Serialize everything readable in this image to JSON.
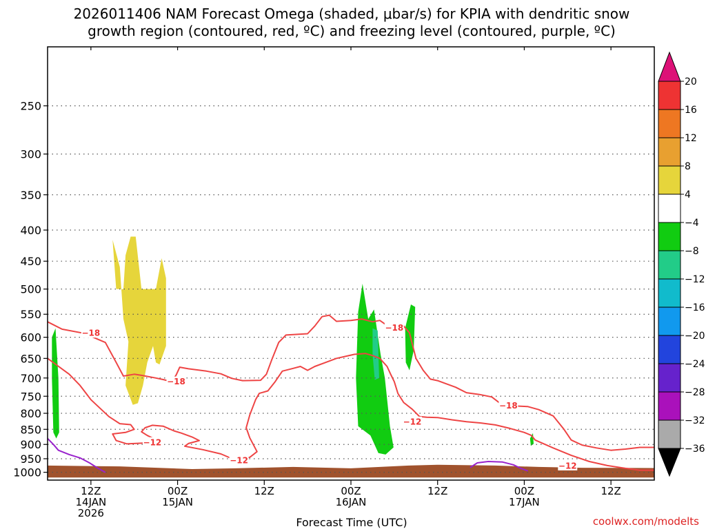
{
  "title_line1": "2026011406 NAM Forecast Omega (shaded, μbar/s) for KPIA with dendritic snow",
  "title_line2": "growth region (contoured, red, ºC) and freezing level (contoured, purple, ºC)",
  "xlabel": "Forecast Time (UTC)",
  "credit": "coolwx.com/modelts",
  "colors": {
    "omega_pos_4_8": "#e6d53b",
    "omega_neg_4_8": "#11cc11",
    "omega_neg_8_12": "#22cc88",
    "dgz_contour": "#ee4444",
    "freezing_contour": "#9922cc",
    "ground": "#a0522d"
  },
  "chart_data": {
    "type": "heatmap",
    "x_unit": "forecast hour from 2026011406",
    "xlim": [
      0,
      84
    ],
    "y_scale": "log",
    "ylim_hpa": [
      1000,
      200
    ],
    "grid": true,
    "x_ticks": [
      {
        "hour": 6,
        "label": [
          "12Z",
          "14JAN",
          "2026"
        ]
      },
      {
        "hour": 18,
        "label": [
          "00Z",
          "15JAN"
        ]
      },
      {
        "hour": 30,
        "label": [
          "12Z"
        ]
      },
      {
        "hour": 42,
        "label": [
          "00Z",
          "16JAN"
        ]
      },
      {
        "hour": 54,
        "label": [
          "12Z"
        ]
      },
      {
        "hour": 66,
        "label": [
          "00Z",
          "17JAN"
        ]
      },
      {
        "hour": 78,
        "label": [
          "12Z"
        ]
      }
    ],
    "y_ticks": [
      250,
      300,
      350,
      400,
      450,
      500,
      550,
      600,
      650,
      700,
      750,
      800,
      850,
      900,
      950,
      1000
    ],
    "colorbar": {
      "ticks": [
        "20",
        "16",
        "12",
        "8",
        "4",
        "−4",
        "−8",
        "−12",
        "−16",
        "−20",
        "−24",
        "−28",
        "−32",
        "−36"
      ],
      "bins": [
        {
          "range": ">20",
          "color": "#dd1177"
        },
        {
          "range": "16 to 20",
          "color": "#ee3333"
        },
        {
          "range": "12 to 16",
          "color": "#ee7722"
        },
        {
          "range": "8 to 12",
          "color": "#e8a030"
        },
        {
          "range": "4 to 8",
          "color": "#e6d53b"
        },
        {
          "range": "-4 to 4",
          "color": "#ffffff"
        },
        {
          "range": "-8 to -4",
          "color": "#11cc11"
        },
        {
          "range": "-12 to -8",
          "color": "#22cc88"
        },
        {
          "range": "-16 to -12",
          "color": "#11bbcc"
        },
        {
          "range": "-20 to -16",
          "color": "#1199ee"
        },
        {
          "range": "-24 to -20",
          "color": "#2244dd"
        },
        {
          "range": "-28 to -24",
          "color": "#6622cc"
        },
        {
          "range": "-32 to -28",
          "color": "#aa11bb"
        },
        {
          "range": "-36 to -32",
          "color": "#aaaaaa"
        },
        {
          "range": "<-36",
          "color": "#000000"
        }
      ]
    },
    "omega_regions": [
      {
        "bin": "4 to 8",
        "color": "#e6d53b",
        "points": [
          [
            9.0,
            415
          ],
          [
            9.5,
            500
          ],
          [
            10.5,
            500
          ],
          [
            10.8,
            440
          ],
          [
            11.5,
            410
          ],
          [
            12.2,
            410
          ],
          [
            13.0,
            500
          ],
          [
            15.0,
            500
          ],
          [
            15.8,
            445
          ],
          [
            16.4,
            480
          ],
          [
            16.4,
            620
          ],
          [
            15.5,
            665
          ],
          [
            15.0,
            660
          ],
          [
            14.6,
            620
          ],
          [
            13.8,
            660
          ],
          [
            13.2,
            720
          ],
          [
            12.5,
            770
          ],
          [
            11.8,
            775
          ],
          [
            10.8,
            720
          ],
          [
            11.2,
            610
          ],
          [
            10.5,
            560
          ],
          [
            10.0,
            460
          ]
        ]
      },
      {
        "bin": "-8 to -4",
        "color": "#11cc11",
        "points": [
          [
            0.6,
            600
          ],
          [
            1.1,
            580
          ],
          [
            1.5,
            700
          ],
          [
            1.6,
            860
          ],
          [
            1.2,
            880
          ],
          [
            0.8,
            860
          ],
          [
            0.6,
            700
          ]
        ]
      },
      {
        "bin": "-8 to -4",
        "color": "#11cc11",
        "points": [
          [
            43.0,
            545
          ],
          [
            43.6,
            490
          ],
          [
            44.4,
            560
          ],
          [
            45.2,
            540
          ],
          [
            46.1,
            640
          ],
          [
            46.7,
            700
          ],
          [
            47.4,
            840
          ],
          [
            47.9,
            910
          ],
          [
            46.8,
            935
          ],
          [
            45.8,
            930
          ],
          [
            44.7,
            870
          ],
          [
            43.0,
            840
          ],
          [
            42.7,
            700
          ]
        ]
      },
      {
        "bin": "-12 to -8",
        "color": "#22cc88",
        "points": [
          [
            45.0,
            580
          ],
          [
            45.7,
            585
          ],
          [
            45.9,
            700
          ],
          [
            45.3,
            705
          ],
          [
            45.0,
            640
          ]
        ]
      },
      {
        "bin": "-8 to -4",
        "color": "#11cc11",
        "points": [
          [
            49.5,
            580
          ],
          [
            50.3,
            530
          ],
          [
            50.9,
            535
          ],
          [
            50.7,
            630
          ],
          [
            50.1,
            680
          ],
          [
            49.6,
            660
          ]
        ]
      },
      {
        "bin": "-8 to -4",
        "color": "#11cc11",
        "points": [
          [
            66.8,
            880
          ],
          [
            67.2,
            862
          ],
          [
            67.3,
            898
          ],
          [
            66.9,
            905
          ]
        ]
      }
    ],
    "contours": [
      {
        "name": "-18 °C",
        "color": "#ee4444",
        "label": "−18",
        "label_at": [
          [
            6.0,
            590
          ],
          [
            17.8,
            709
          ],
          [
            48.0,
            578
          ],
          [
            63.8,
            776
          ]
        ],
        "points": [
          [
            0.0,
            566
          ],
          [
            2.0,
            582
          ],
          [
            5.0,
            591
          ],
          [
            8.0,
            612
          ],
          [
            9.5,
            660
          ],
          [
            10.5,
            695
          ],
          [
            12.0,
            690
          ],
          [
            13.0,
            693
          ],
          [
            15.0,
            700
          ],
          [
            16.0,
            704
          ],
          [
            17.2,
            710
          ],
          [
            17.8,
            692
          ],
          [
            18.3,
            672
          ],
          [
            19.5,
            676
          ],
          [
            22.0,
            682
          ],
          [
            24.0,
            689
          ],
          [
            25.5,
            701
          ],
          [
            27.0,
            707
          ],
          [
            29.5,
            706
          ],
          [
            30.3,
            690
          ],
          [
            31.0,
            655
          ],
          [
            32.0,
            612
          ],
          [
            33.0,
            595
          ],
          [
            36.0,
            592
          ],
          [
            37.0,
            575
          ],
          [
            38.0,
            555
          ],
          [
            39.0,
            552
          ],
          [
            40.0,
            565
          ],
          [
            42.0,
            563
          ],
          [
            43.5,
            560
          ],
          [
            45.0,
            566
          ],
          [
            46.0,
            563
          ],
          [
            47.0,
            574
          ],
          [
            48.0,
            577
          ],
          [
            49.3,
            575
          ],
          [
            50.1,
            590
          ],
          [
            51.0,
            650
          ],
          [
            52.0,
            680
          ],
          [
            53.0,
            703
          ],
          [
            54.0,
            707
          ],
          [
            55.0,
            714
          ],
          [
            56.5,
            725
          ],
          [
            58.0,
            740
          ],
          [
            59.8,
            745
          ],
          [
            61.5,
            752
          ],
          [
            63.0,
            776
          ],
          [
            64.5,
            778
          ],
          [
            66.5,
            780
          ],
          [
            68.0,
            789
          ],
          [
            70.0,
            808
          ],
          [
            71.5,
            850
          ],
          [
            72.5,
            885
          ],
          [
            74.0,
            902
          ],
          [
            76.0,
            912
          ],
          [
            78.0,
            920
          ],
          [
            80.0,
            916
          ],
          [
            82.0,
            910
          ],
          [
            84.0,
            910
          ]
        ]
      },
      {
        "name": "-12 °C",
        "color": "#ee4444",
        "label": "−12",
        "label_at": [
          [
            14.5,
            892
          ],
          [
            26.5,
            955
          ],
          [
            50.5,
            825
          ],
          [
            72.0,
            975
          ]
        ],
        "points": [
          [
            0.0,
            650
          ],
          [
            3.0,
            690
          ],
          [
            4.5,
            720
          ],
          [
            6.0,
            760
          ],
          [
            8.5,
            810
          ],
          [
            10.0,
            832
          ],
          [
            11.5,
            835
          ],
          [
            12.0,
            850
          ],
          [
            10.8,
            860
          ],
          [
            9.0,
            865
          ],
          [
            9.5,
            887
          ],
          [
            11.0,
            898
          ],
          [
            13.5,
            895
          ],
          [
            15.5,
            890
          ],
          [
            13.8,
            870
          ],
          [
            13.0,
            858
          ],
          [
            13.5,
            845
          ],
          [
            14.5,
            837
          ],
          [
            16.0,
            840
          ],
          [
            17.5,
            855
          ],
          [
            18.5,
            862
          ],
          [
            20.0,
            875
          ],
          [
            21.0,
            887
          ],
          [
            19.5,
            897
          ],
          [
            19.0,
            906
          ],
          [
            21.5,
            918
          ],
          [
            24.0,
            933
          ],
          [
            26.0,
            955
          ],
          [
            28.0,
            945
          ],
          [
            29.0,
            925
          ],
          [
            28.0,
            878
          ],
          [
            27.5,
            845
          ],
          [
            28.0,
            805
          ],
          [
            28.8,
            760
          ],
          [
            29.3,
            742
          ],
          [
            30.5,
            735
          ],
          [
            31.5,
            710
          ],
          [
            32.5,
            682
          ],
          [
            34.0,
            675
          ],
          [
            35.0,
            670
          ],
          [
            36.0,
            680
          ],
          [
            37.0,
            670
          ],
          [
            38.5,
            660
          ],
          [
            40.0,
            650
          ],
          [
            42.5,
            640
          ],
          [
            44.0,
            638
          ],
          [
            45.0,
            643
          ],
          [
            46.0,
            650
          ],
          [
            47.0,
            670
          ],
          [
            47.5,
            690
          ],
          [
            48.0,
            710
          ],
          [
            48.5,
            742
          ],
          [
            49.3,
            768
          ],
          [
            50.5,
            788
          ],
          [
            51.5,
            810
          ],
          [
            52.5,
            812
          ],
          [
            54.0,
            813
          ],
          [
            56.0,
            820
          ],
          [
            58.0,
            826
          ],
          [
            60.0,
            830
          ],
          [
            62.0,
            836
          ],
          [
            64.0,
            847
          ],
          [
            66.0,
            860
          ],
          [
            67.0,
            870
          ],
          [
            67.5,
            885
          ],
          [
            70.0,
            912
          ],
          [
            72.5,
            938
          ],
          [
            75.0,
            960
          ],
          [
            77.5,
            975
          ],
          [
            80.0,
            985
          ],
          [
            82.0,
            992
          ],
          [
            84.0,
            992
          ]
        ]
      },
      {
        "name": "0 °C",
        "color": "#9922cc",
        "label": "",
        "label_at": [],
        "points": [
          [
            0.0,
            880
          ],
          [
            0.8,
            900
          ],
          [
            1.5,
            920
          ],
          [
            3.0,
            935
          ],
          [
            4.5,
            947
          ],
          [
            5.8,
            965
          ],
          [
            7.0,
            985
          ],
          [
            8.0,
            1000
          ]
        ]
      },
      {
        "name": "0 °C",
        "color": "#9922cc",
        "label": "",
        "label_at": [],
        "points": [
          [
            58.5,
            982
          ],
          [
            59.5,
            965
          ],
          [
            61.0,
            960
          ],
          [
            63.0,
            962
          ],
          [
            64.5,
            972
          ],
          [
            65.5,
            985
          ],
          [
            66.5,
            995
          ]
        ]
      }
    ],
    "ground": {
      "surface_pressure_hpa": [
        [
          0.0,
          975
        ],
        [
          10.0,
          978
        ],
        [
          20.0,
          988
        ],
        [
          26.0,
          985
        ],
        [
          34.0,
          980
        ],
        [
          42.0,
          985
        ],
        [
          50.0,
          975
        ],
        [
          54.0,
          972
        ],
        [
          62.0,
          975
        ],
        [
          68.0,
          980
        ],
        [
          74.0,
          983
        ],
        [
          84.0,
          984
        ]
      ],
      "bottom_hpa": 1020
    }
  }
}
